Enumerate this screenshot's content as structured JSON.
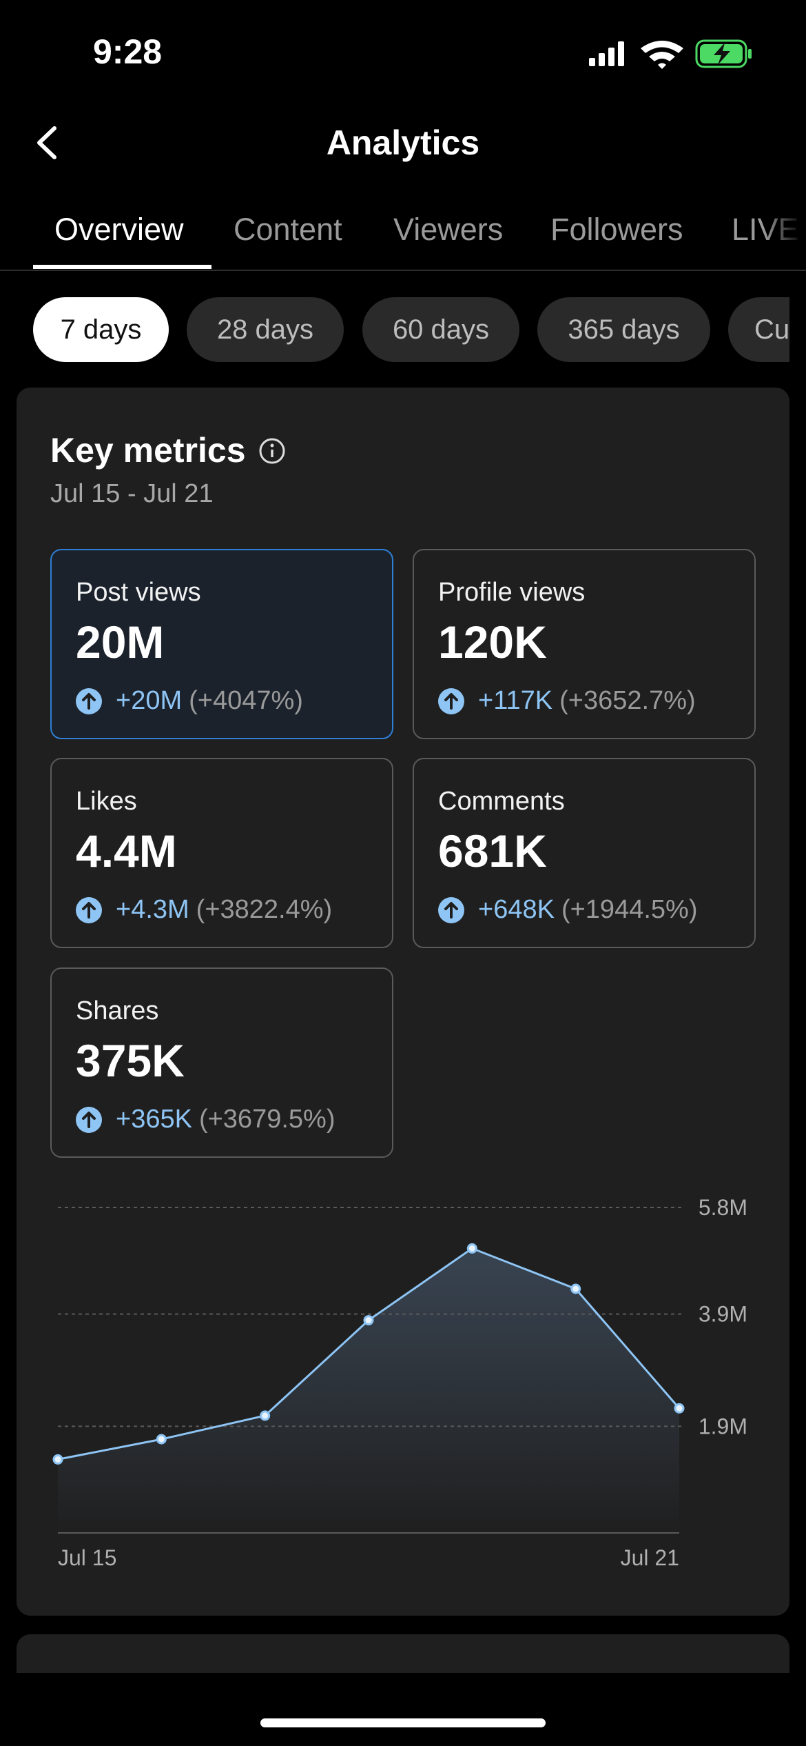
{
  "status_bar": {
    "time": "9:28"
  },
  "header": {
    "title": "Analytics"
  },
  "tabs": [
    "Overview",
    "Content",
    "Viewers",
    "Followers",
    "LIVE"
  ],
  "date_ranges": [
    "7 days",
    "28 days",
    "60 days",
    "365 days",
    "Cu"
  ],
  "key_metrics": {
    "title": "Key metrics",
    "date_range": "Jul 15 - Jul 21",
    "metrics": [
      {
        "label": "Post views",
        "value": "20M",
        "change": "+20M",
        "change_pct": "(+4047%)"
      },
      {
        "label": "Profile views",
        "value": "120K",
        "change": "+117K",
        "change_pct": "(+3652.7%)"
      },
      {
        "label": "Likes",
        "value": "4.4M",
        "change": "+4.3M",
        "change_pct": "(+3822.4%)"
      },
      {
        "label": "Comments",
        "value": "681K",
        "change": "+648K",
        "change_pct": "(+1944.5%)"
      },
      {
        "label": "Shares",
        "value": "375K",
        "change": "+365K",
        "change_pct": "(+3679.5%)"
      }
    ]
  },
  "chart_data": {
    "type": "line",
    "categories": [
      "Jul 15",
      null,
      null,
      null,
      null,
      null,
      "Jul 21"
    ],
    "values": [
      1310000,
      1670000,
      2090000,
      3790000,
      5070000,
      4350000,
      2220000
    ],
    "color": "#8ec5f5",
    "ylim": [
      0,
      5800000
    ],
    "yticks": [
      {
        "value": 1900000,
        "label": "1.9M"
      },
      {
        "value": 3900000,
        "label": "3.9M"
      },
      {
        "value": 5800000,
        "label": "5.8M"
      }
    ],
    "grid": true
  }
}
